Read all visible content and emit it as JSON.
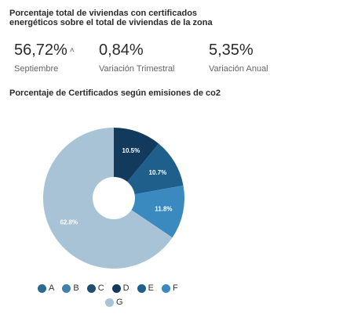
{
  "kpi": {
    "title": "Porcentaje total de viviendas con certificados energéticos sobre el total de viviendas de la zona",
    "items": [
      {
        "value": "56,72%",
        "trend": "˄",
        "label": "Septiembre"
      },
      {
        "value": "0,84%",
        "label": "Variación Trimestral"
      },
      {
        "value": "5,35%",
        "label": "Variación Anual"
      }
    ]
  },
  "chart_data": {
    "type": "pie",
    "title": "Porcentaje de Certificados según emisiones de co2",
    "categories": [
      "A",
      "B",
      "C",
      "D",
      "E",
      "F",
      "G"
    ],
    "values": [
      0.0,
      0.0,
      0.0,
      10.5,
      10.7,
      11.8,
      62.8
    ],
    "labels": [
      "",
      "",
      "",
      "10.5%",
      "10.7%",
      "11.8%",
      "62.8%"
    ],
    "colors": [
      "#2b6a8f",
      "#3f81ab",
      "#1d4f70",
      "#123a5c",
      "#1f5f8b",
      "#3a8abf",
      "#a8c3d6"
    ],
    "legend_placement": "bottom"
  }
}
